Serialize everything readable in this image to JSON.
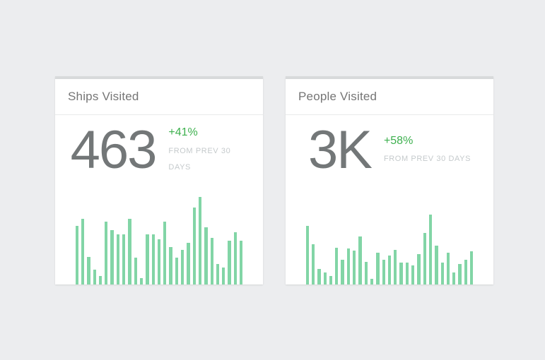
{
  "colors": {
    "page_bg": "#ecedef",
    "card_topbar": "#d8dadb",
    "title_gray": "#757575",
    "number_gray": "#737778",
    "delta_green": "#3db04e",
    "label_gray": "#c5cacc",
    "bar_green": "#82d5a6"
  },
  "cards": [
    {
      "title": "Ships Visited",
      "value": "463",
      "delta": "+41%",
      "period": "FROM PREV 30 DAYS"
    },
    {
      "title": "People Visited",
      "value": "3K",
      "delta": "+58%",
      "period": "FROM PREV 30 DAYS"
    }
  ],
  "chart_data": [
    {
      "type": "bar",
      "title": "Ships Visited",
      "subtitle": "463 (+41% from prev 30 days)",
      "x": "last 29 days (unlabeled sparkline)",
      "values": [
        83,
        93,
        39,
        21,
        12,
        89,
        77,
        71,
        71,
        93,
        38,
        9,
        71,
        71,
        64,
        89,
        53,
        38,
        49,
        59,
        109,
        124,
        81,
        66,
        29,
        24,
        62,
        74,
        62
      ],
      "units": "relative bar height (px), no axes shown",
      "ylim": [
        0,
        126
      ],
      "grid": false,
      "legend": false,
      "bar_color": "#82d5a6"
    },
    {
      "type": "bar",
      "title": "People Visited",
      "subtitle": "3K (+58% from prev 30 days)",
      "x": "last 29 days (unlabeled sparkline)",
      "values": [
        83,
        57,
        22,
        17,
        12,
        52,
        35,
        51,
        48,
        68,
        32,
        8,
        45,
        35,
        41,
        49,
        31,
        31,
        27,
        43,
        73,
        99,
        55,
        31,
        45,
        17,
        29,
        35,
        47
      ],
      "units": "relative bar height (px), no axes shown",
      "ylim": [
        0,
        126
      ],
      "grid": false,
      "legend": false,
      "bar_color": "#82d5a6"
    }
  ]
}
